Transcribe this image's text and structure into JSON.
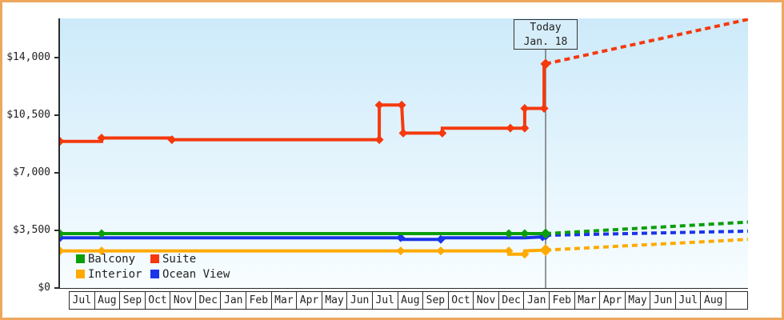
{
  "window": {
    "border_color": "#eda75f",
    "background": "#ffffff"
  },
  "today_flag": {
    "line1": "Today",
    "line2": "Jan. 18"
  },
  "legend": {
    "rows": [
      [
        "Balcony",
        "Suite"
      ],
      [
        "Interior",
        "Ocean View"
      ]
    ]
  },
  "chart_data": {
    "type": "line",
    "title": "",
    "subtitle": "",
    "interpolation": "step",
    "plot_background": {
      "top": "#cdeafa",
      "bottom": "#f8fdff"
    },
    "grid": "off",
    "legend_position": "bottom-left-inside",
    "y_axis": {
      "ticks": [
        {
          "v": 0,
          "label": "$0"
        },
        {
          "v": 3500,
          "label": "$3,500"
        },
        {
          "v": 7000,
          "label": "$7,000"
        },
        {
          "v": 10500,
          "label": "$10,500"
        },
        {
          "v": 14000,
          "label": "$14,000"
        }
      ],
      "visible_max_value": 16350
    },
    "x_axis": {
      "unit": "month",
      "months": [
        "Jul",
        "Aug",
        "Sep",
        "Oct",
        "Nov",
        "Dec",
        "Jan",
        "Feb",
        "Mar",
        "Apr",
        "May",
        "Jun",
        "Jul",
        "Aug",
        "Sep",
        "Oct",
        "Nov",
        "Dec",
        "Jan",
        "Feb",
        "Mar",
        "Apr",
        "May",
        "Jun",
        "Jul",
        "Aug"
      ],
      "months_total_span": 27.3,
      "first_cell_offset_months": 0.41
    },
    "today": {
      "t": 19.27,
      "label": "Jan. 18"
    },
    "draw_order": [
      "Ocean View",
      "Balcony",
      "Interior",
      "Suite"
    ],
    "series": [
      {
        "name": "Balcony",
        "color": "#0b9e0b",
        "points": [
          {
            "t": 0.0,
            "v": 3300,
            "m": 1
          },
          {
            "t": 1.65,
            "v": 3300,
            "m": 1
          },
          {
            "t": 17.81,
            "v": 3300,
            "m": 1
          },
          {
            "t": 18.44,
            "v": 3300,
            "m": 1
          },
          {
            "t": 19.27,
            "v": 3300,
            "m": 2
          }
        ],
        "projection_end": {
          "t": 27.3,
          "v": 4000
        }
      },
      {
        "name": "Suite",
        "color": "#f5390d",
        "points": [
          {
            "t": 0.0,
            "v": 8900,
            "m": 1
          },
          {
            "t": 1.65,
            "v": 8900
          },
          {
            "t": 1.65,
            "v": 9100,
            "m": 1
          },
          {
            "t": 4.44,
            "v": 9100
          },
          {
            "t": 4.44,
            "v": 9000,
            "m": 1
          },
          {
            "t": 12.67,
            "v": 9000,
            "m": 1
          },
          {
            "t": 12.67,
            "v": 11100,
            "m": 1
          },
          {
            "t": 13.56,
            "v": 11100,
            "m": 1
          },
          {
            "t": 13.62,
            "v": 9400,
            "m": 1
          },
          {
            "t": 15.17,
            "v": 9400,
            "m": 1
          },
          {
            "t": 15.17,
            "v": 9700
          },
          {
            "t": 17.87,
            "v": 9700,
            "m": 1
          },
          {
            "t": 18.44,
            "v": 9700,
            "m": 1
          },
          {
            "t": 18.44,
            "v": 10900,
            "m": 1
          },
          {
            "t": 19.21,
            "v": 10900,
            "m": 1
          },
          {
            "t": 19.21,
            "v": 13600
          },
          {
            "t": 19.27,
            "v": 13600,
            "m": 2
          }
        ],
        "projection_end": {
          "t": 27.3,
          "v": 16300
        }
      },
      {
        "name": "Interior",
        "color": "#ffaa00",
        "points": [
          {
            "t": 0.0,
            "v": 2250,
            "m": 1
          },
          {
            "t": 1.65,
            "v": 2250,
            "m": 1
          },
          {
            "t": 13.52,
            "v": 2250,
            "m": 1
          },
          {
            "t": 15.11,
            "v": 2250,
            "m": 1
          },
          {
            "t": 17.81,
            "v": 2250,
            "m": 1
          },
          {
            "t": 17.81,
            "v": 2050
          },
          {
            "t": 18.44,
            "v": 2050,
            "m": 1
          },
          {
            "t": 18.44,
            "v": 2250
          },
          {
            "t": 19.27,
            "v": 2300,
            "m": 3
          }
        ],
        "projection_end": {
          "t": 27.3,
          "v": 2950
        }
      },
      {
        "name": "Ocean View",
        "color": "#1b35e8",
        "points": [
          {
            "t": 0.0,
            "v": 3050,
            "m": 1
          },
          {
            "t": 13.52,
            "v": 3050,
            "m": 1
          },
          {
            "t": 13.52,
            "v": 2950
          },
          {
            "t": 15.11,
            "v": 2950,
            "m": 1
          },
          {
            "t": 15.11,
            "v": 3050
          },
          {
            "t": 18.44,
            "v": 3050
          },
          {
            "t": 19.15,
            "v": 3100,
            "m": 1
          },
          {
            "t": 19.27,
            "v": 3200,
            "m": 2
          }
        ],
        "projection_end": {
          "t": 27.3,
          "v": 3450
        }
      }
    ]
  }
}
